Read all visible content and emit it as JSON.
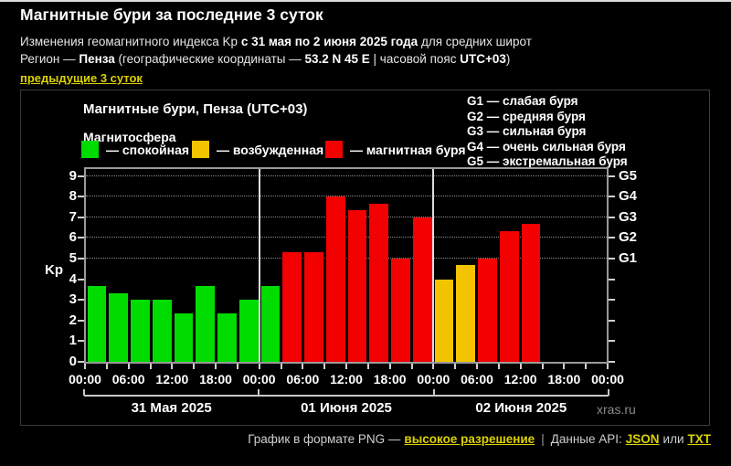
{
  "header": {
    "title": "Магнитные бури за последние 3 суток",
    "subtitle": {
      "prefix": "Изменения геомагнитного индекса Kp ",
      "bold": "с 31 мая по 2 июня 2025 года",
      "suffix": " для средних широт"
    },
    "region": {
      "prefix": "Регион — ",
      "name": "Пенза",
      "mid": " (географические координаты — ",
      "coords": "53.2 N 45 E",
      "sep": " | часовой пояс ",
      "tz": "UTC+03",
      "close": ")"
    },
    "prev_link": "предыдущие 3 суток"
  },
  "chart": {
    "title": "Магнитные бури, Пенза (UTC+03)",
    "legend_title": "Магнитосфера",
    "legend": [
      {
        "label": "— спокойная",
        "status": "quiet",
        "color": "#00dc00"
      },
      {
        "label": "— возбужденная",
        "status": "excited",
        "color": "#f3c300"
      },
      {
        "label": "— магнитная буря",
        "status": "storm",
        "color": "#f30000"
      }
    ],
    "g_legend": [
      "G1 — слабая буря",
      "G2 — средняя буря",
      "G3 — сильная буря",
      "G4 — очень сильная буря",
      "G5 — экстремальная буря"
    ],
    "watermark": "xras.ru"
  },
  "chart_data": {
    "type": "bar",
    "title": "Магнитные бури, Пенза (UTC+03)",
    "ylabel": "Kp",
    "ylim": [
      0,
      9.4
    ],
    "yticks": [
      0,
      1,
      2,
      3,
      4,
      5,
      6,
      7,
      8,
      9
    ],
    "gridline_values": [
      5,
      6,
      7,
      8,
      9
    ],
    "right_axis": [
      {
        "value": 5,
        "label": "G1"
      },
      {
        "value": 6,
        "label": "G2"
      },
      {
        "value": 7,
        "label": "G3"
      },
      {
        "value": 8,
        "label": "G4"
      },
      {
        "value": 9,
        "label": "G5"
      }
    ],
    "time_ticks": [
      "00:00",
      "06:00",
      "12:00",
      "18:00",
      "00:00",
      "06:00",
      "12:00",
      "18:00",
      "00:00",
      "06:00",
      "12:00",
      "18:00",
      "00:00"
    ],
    "hours_per_bar": 3,
    "status_colors": {
      "quiet": "#00dc00",
      "excited": "#f3c300",
      "storm": "#f30000"
    },
    "days": [
      {
        "label": "31 Мая 2025",
        "bars": [
          {
            "kp": 3.67,
            "status": "quiet"
          },
          {
            "kp": 3.33,
            "status": "quiet"
          },
          {
            "kp": 3.0,
            "status": "quiet"
          },
          {
            "kp": 3.0,
            "status": "quiet"
          },
          {
            "kp": 2.33,
            "status": "quiet"
          },
          {
            "kp": 3.67,
            "status": "quiet"
          },
          {
            "kp": 2.33,
            "status": "quiet"
          },
          {
            "kp": 3.0,
            "status": "quiet"
          }
        ]
      },
      {
        "label": "01 Июня 2025",
        "bars": [
          {
            "kp": 3.67,
            "status": "quiet"
          },
          {
            "kp": 5.33,
            "status": "storm"
          },
          {
            "kp": 5.33,
            "status": "storm"
          },
          {
            "kp": 8.0,
            "status": "storm"
          },
          {
            "kp": 7.33,
            "status": "storm"
          },
          {
            "kp": 7.67,
            "status": "storm"
          },
          {
            "kp": 5.0,
            "status": "storm"
          },
          {
            "kp": 7.0,
            "status": "storm"
          }
        ]
      },
      {
        "label": "02 Июня 2025",
        "bars": [
          {
            "kp": 4.0,
            "status": "excited"
          },
          {
            "kp": 4.67,
            "status": "excited"
          },
          {
            "kp": 5.0,
            "status": "storm"
          },
          {
            "kp": 6.33,
            "status": "storm"
          },
          {
            "kp": 6.67,
            "status": "storm"
          }
        ]
      }
    ]
  },
  "footer": {
    "graph_prefix": "График в формате PNG —",
    "hires_link": "высокое разрешение",
    "separator": "|",
    "api_prefix": "Данные API:",
    "json_link": "JSON",
    "or_text": "или",
    "txt_link": "TXT"
  }
}
